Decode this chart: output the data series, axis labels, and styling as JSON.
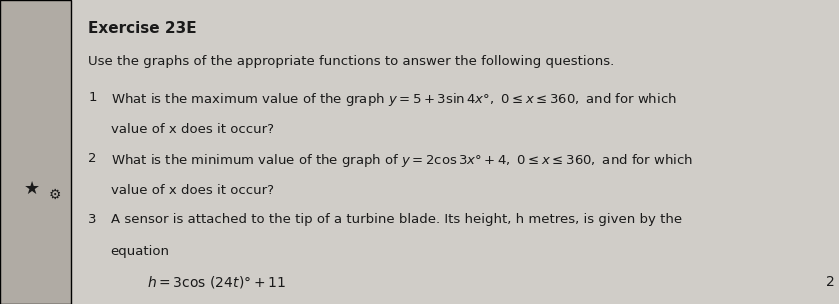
{
  "title": "Exercise 23E",
  "intro": "Use the graphs of the appropriate functions to answer the following questions.",
  "q1_num": "1",
  "q1_text1": "What is the maximum value of the graph ",
  "q1_formula": "y = 5 + 3sin 4x°, 0 ≤ x ≤ 360, and for which",
  "q1_text2": "value of x does it occur?",
  "q2_num": "2",
  "q2_text1": "What is the minimum value of the graph of ",
  "q2_formula": "y = 2cos 3x° + 4, 0 ≤ x ≤ 360, and for which",
  "q2_text2": "value of x does it occur?",
  "q3_num": "3",
  "q3_text1": "A sensor is attached to the tip of a turbine blade. Its height, h metres, is given by the",
  "q3_text2": "equation",
  "q3_formula": "h = 3cos (24t)° + 11",
  "page_num": "2",
  "bg_color": "#d0cdc8",
  "text_color": "#1a1a1a",
  "left_panel_color": "#b0aba4",
  "star_color": "#1a1a1a"
}
